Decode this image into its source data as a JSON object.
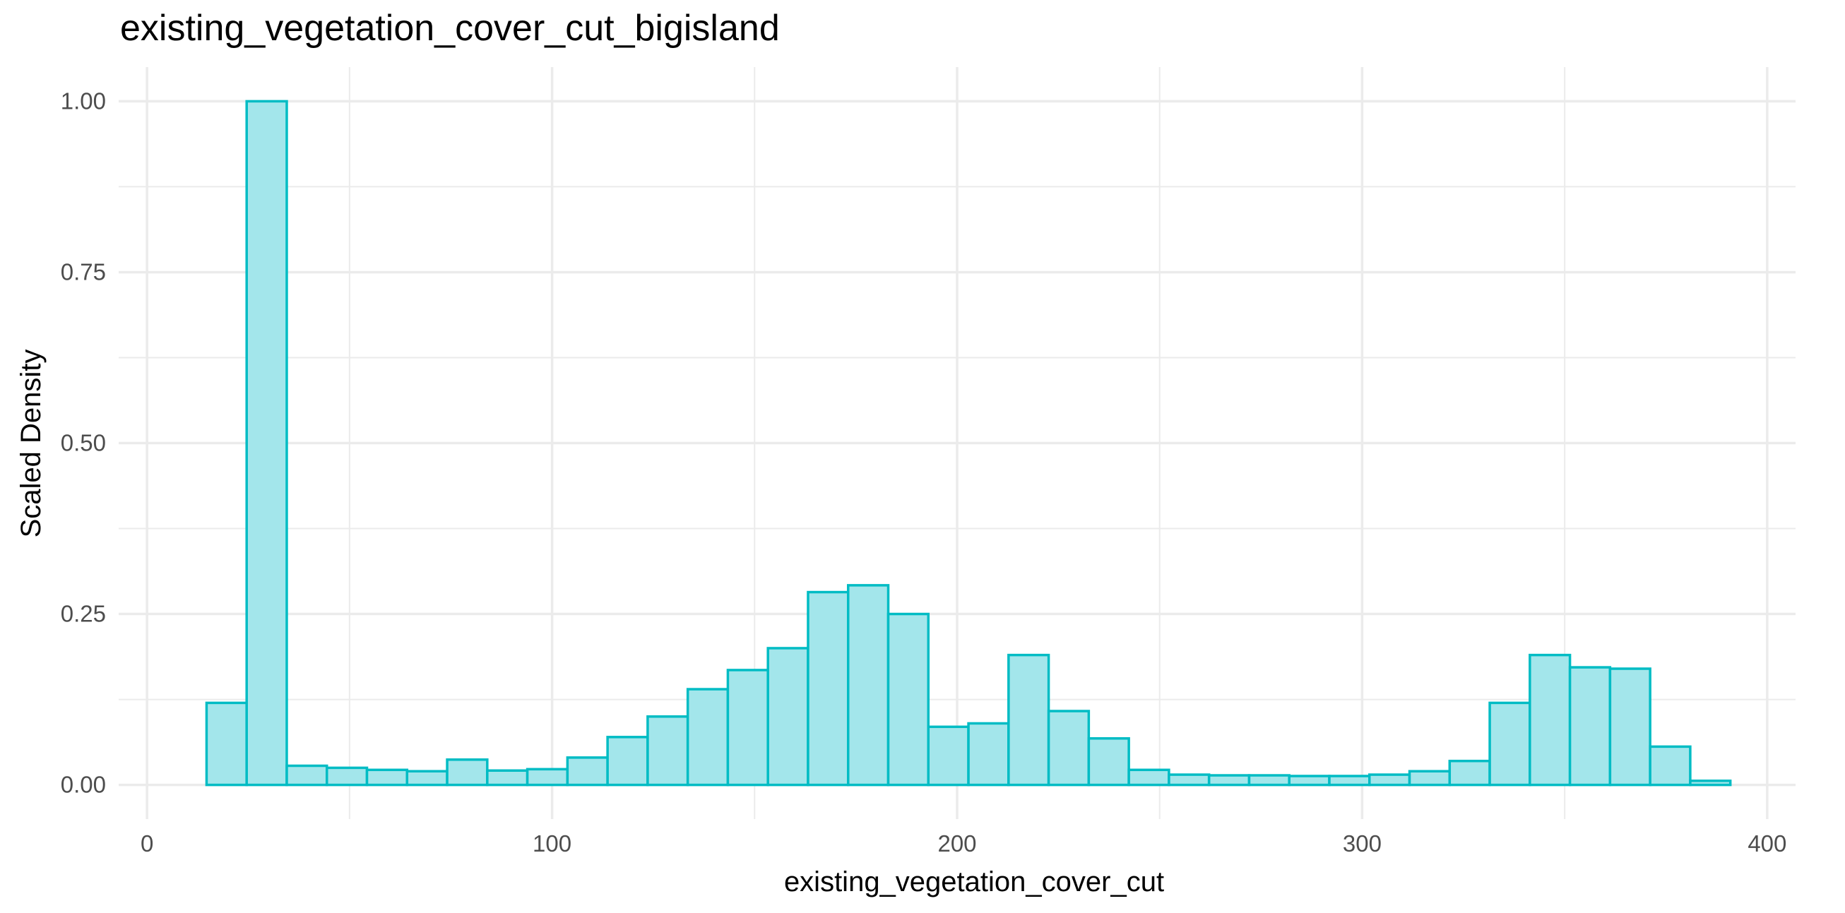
{
  "chart_data": {
    "type": "bar",
    "title": "existing_vegetation_cover_cut_bigisland",
    "xlabel": "existing_vegetation_cover_cut",
    "ylabel": "Scaled Density",
    "xlim": [
      -7,
      407
    ],
    "ylim": [
      -0.05,
      1.05
    ],
    "x_ticks": [
      0,
      100,
      200,
      300,
      400
    ],
    "x_tick_labels": [
      "0",
      "100",
      "200",
      "300",
      "400"
    ],
    "y_ticks": [
      0,
      0.25,
      0.5,
      0.75,
      1.0
    ],
    "y_tick_labels": [
      "0.00",
      "0.25",
      "0.50",
      "0.75",
      "1.00"
    ],
    "grid": true,
    "bin_width": 9.9,
    "bin_starts": [
      14.7,
      24.6,
      34.5,
      44.4,
      54.3,
      64.2,
      74.1,
      84.0,
      93.9,
      103.8,
      113.7,
      123.6,
      133.5,
      143.4,
      153.3,
      163.2,
      173.1,
      183.0,
      192.9,
      202.8,
      212.7,
      222.6,
      232.5,
      242.4,
      252.3,
      262.2,
      272.1,
      282.0,
      291.9,
      301.8,
      311.7,
      321.6,
      331.5,
      341.4,
      351.3,
      361.2,
      371.1,
      381.0
    ],
    "values": [
      0.12,
      1.0,
      0.028,
      0.025,
      0.022,
      0.02,
      0.037,
      0.021,
      0.023,
      0.04,
      0.07,
      0.1,
      0.14,
      0.168,
      0.2,
      0.282,
      0.292,
      0.25,
      0.085,
      0.09,
      0.19,
      0.108,
      0.068,
      0.022,
      0.015,
      0.014,
      0.014,
      0.013,
      0.013,
      0.015,
      0.02,
      0.035,
      0.12,
      0.19,
      0.172,
      0.17,
      0.056,
      0.006
    ],
    "fill_color": "#a3e6eb",
    "line_color": "#00bcc4",
    "grid_color": "#ebebeb"
  }
}
